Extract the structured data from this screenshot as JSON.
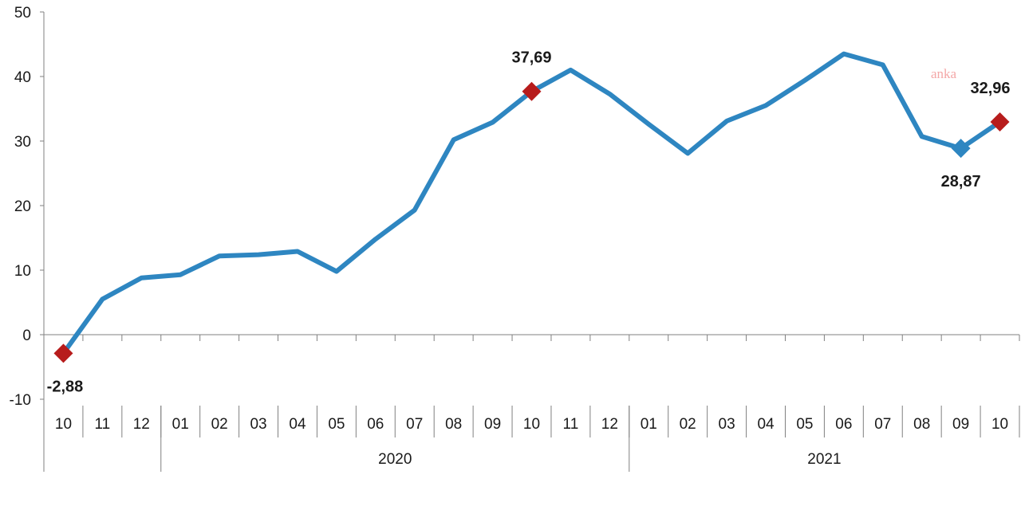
{
  "chart_data": {
    "type": "line",
    "title": "",
    "xlabel": "",
    "ylabel": "",
    "ylim": [
      -10,
      50
    ],
    "yticks": [
      -10,
      0,
      10,
      20,
      30,
      40,
      50
    ],
    "grid": false,
    "categories": [
      "10",
      "11",
      "12",
      "01",
      "02",
      "03",
      "04",
      "05",
      "06",
      "07",
      "08",
      "09",
      "10",
      "11",
      "12",
      "01",
      "02",
      "03",
      "04",
      "05",
      "06",
      "07",
      "08",
      "09",
      "10"
    ],
    "year_groups": [
      {
        "label": "",
        "start": 0,
        "end": 2
      },
      {
        "label": "2020",
        "start": 3,
        "end": 14
      },
      {
        "label": "2021",
        "start": 15,
        "end": 24
      }
    ],
    "series": [
      {
        "color": "#2e86c1",
        "values": [
          -2.88,
          5.5,
          8.8,
          9.3,
          12.2,
          12.4,
          12.9,
          9.8,
          14.8,
          19.3,
          30.2,
          32.9,
          37.69,
          41.0,
          37.3,
          32.6,
          28.1,
          33.1,
          35.5,
          39.4,
          43.5,
          41.8,
          30.7,
          28.87,
          32.96
        ]
      }
    ],
    "highlighted_points": [
      {
        "index": 0,
        "label": "-2,88",
        "marker_color": "#b71c1c",
        "label_position": "below"
      },
      {
        "index": 12,
        "label": "37,69",
        "marker_color": "#b71c1c",
        "label_position": "above"
      },
      {
        "index": 23,
        "label": "28,87",
        "marker_color": "#2e86c1",
        "label_position": "below"
      },
      {
        "index": 24,
        "label": "32,96",
        "marker_color": "#b71c1c",
        "label_position": "above"
      }
    ],
    "watermark": "anka",
    "watermark_color": "#f4a7a7"
  }
}
